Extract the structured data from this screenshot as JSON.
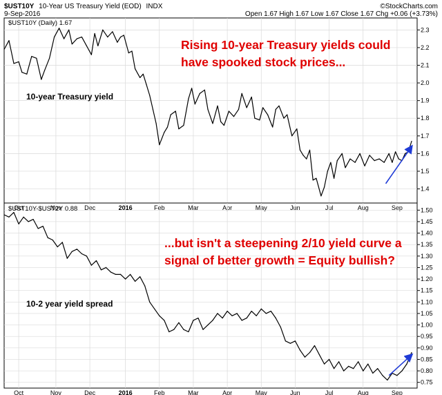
{
  "header": {
    "symbol": "$UST10Y",
    "description": "10-Year US Treasury Yield (EOD)",
    "exchange": "INDX",
    "date": "9-Sep-2016",
    "quote": "Open 1.67  High 1.67  Low 1.67  Close 1.67  Chg +0.06 (+3.73%)",
    "logo": "©StockCharts.com"
  },
  "colors": {
    "line": "#000000",
    "annotation_red": "#e00000",
    "arrow": "#1f3bd6",
    "grid": "#d9d9d9"
  },
  "chart_data": [
    {
      "type": "line",
      "legend": "$UST10Y (Daily) 1.67",
      "annotation_title": [
        "Rising 10-year Treasury yields could",
        "have spooked stock prices..."
      ],
      "label": "10-year Treasury yield",
      "ylim": [
        1.32,
        2.36
      ],
      "y_ticks": [
        "2.3",
        "2.2",
        "2.1",
        "2.0",
        "1.9",
        "1.8",
        "1.7",
        "1.6",
        "1.5",
        "1.4"
      ],
      "x_ticks": [
        "Oct",
        "Nov",
        "Dec",
        "2016",
        "Feb",
        "Mar",
        "Apr",
        "May",
        "Jun",
        "Jul",
        "Aug",
        "Sep"
      ],
      "x_tick_positions": [
        9,
        32,
        53,
        75,
        96,
        117,
        138,
        159,
        180,
        201,
        222,
        243
      ],
      "x_range": [
        0,
        252
      ],
      "x": [
        0,
        3,
        6,
        9,
        11,
        14,
        17,
        20,
        23,
        25,
        28,
        31,
        34,
        37,
        40,
        42,
        45,
        48,
        51,
        54,
        56,
        58,
        61,
        64,
        67,
        70,
        72,
        74,
        77,
        79,
        81,
        84,
        86,
        88,
        90,
        92,
        94,
        96,
        99,
        101,
        103,
        106,
        108,
        111,
        114,
        116,
        118,
        121,
        124,
        126,
        129,
        132,
        134,
        136,
        139,
        142,
        145,
        147,
        150,
        153,
        155,
        158,
        160,
        163,
        166,
        168,
        170,
        173,
        175,
        178,
        181,
        183,
        185,
        187,
        189,
        191,
        193,
        196,
        198,
        200,
        202,
        204,
        206,
        209,
        211,
        214,
        217,
        220,
        223,
        226,
        229,
        232,
        235,
        238,
        240,
        242,
        244,
        246,
        248,
        250,
        252
      ],
      "values": [
        2.19,
        2.24,
        2.11,
        2.12,
        2.06,
        2.05,
        2.15,
        2.14,
        2.02,
        2.07,
        2.14,
        2.26,
        2.31,
        2.25,
        2.3,
        2.22,
        2.25,
        2.26,
        2.21,
        2.16,
        2.28,
        2.21,
        2.3,
        2.26,
        2.29,
        2.23,
        2.26,
        2.27,
        2.17,
        2.18,
        2.08,
        2.03,
        2.05,
        1.99,
        1.93,
        1.85,
        1.77,
        1.65,
        1.72,
        1.75,
        1.82,
        1.84,
        1.74,
        1.76,
        1.91,
        1.97,
        1.88,
        1.94,
        1.96,
        1.85,
        1.77,
        1.87,
        1.78,
        1.76,
        1.84,
        1.81,
        1.85,
        1.94,
        1.86,
        1.92,
        1.8,
        1.79,
        1.86,
        1.82,
        1.75,
        1.85,
        1.87,
        1.8,
        1.82,
        1.7,
        1.74,
        1.62,
        1.59,
        1.57,
        1.62,
        1.45,
        1.46,
        1.36,
        1.41,
        1.5,
        1.55,
        1.46,
        1.56,
        1.6,
        1.52,
        1.57,
        1.55,
        1.6,
        1.53,
        1.59,
        1.56,
        1.57,
        1.55,
        1.6,
        1.55,
        1.61,
        1.57,
        1.56,
        1.6,
        1.61,
        1.67
      ],
      "arrow": [
        [
          236,
          1.43
        ],
        [
          252,
          1.64
        ]
      ]
    },
    {
      "type": "line",
      "legend": "$UST10Y-$UST2Y 0.88",
      "annotation_title": [
        "...but isn't a steepening 2/10 yield curve a",
        "signal of better growth = Equity bullish?"
      ],
      "label": "10-2 year yield spread",
      "ylim": [
        0.725,
        1.525
      ],
      "y_ticks": [
        "1.50",
        "1.45",
        "1.40",
        "1.35",
        "1.30",
        "1.25",
        "1.20",
        "1.15",
        "1.10",
        "1.05",
        "1.00",
        "0.95",
        "0.90",
        "0.85",
        "0.80",
        "0.75"
      ],
      "x_ticks": [
        "Oct",
        "Nov",
        "Dec",
        "2016",
        "Feb",
        "Mar",
        "Apr",
        "May",
        "Jun",
        "Jul",
        "Aug",
        "Sep"
      ],
      "x_tick_positions": [
        9,
        32,
        53,
        75,
        96,
        117,
        138,
        159,
        180,
        201,
        222,
        243
      ],
      "x_range": [
        0,
        252
      ],
      "x": [
        0,
        3,
        6,
        9,
        12,
        15,
        18,
        21,
        24,
        27,
        30,
        33,
        36,
        39,
        42,
        45,
        48,
        51,
        54,
        57,
        60,
        63,
        66,
        69,
        72,
        75,
        78,
        81,
        84,
        87,
        90,
        93,
        96,
        99,
        102,
        105,
        108,
        111,
        114,
        117,
        120,
        123,
        126,
        129,
        132,
        135,
        138,
        141,
        144,
        147,
        150,
        153,
        156,
        159,
        162,
        165,
        168,
        171,
        174,
        177,
        180,
        183,
        186,
        189,
        192,
        195,
        198,
        201,
        204,
        207,
        210,
        213,
        216,
        219,
        222,
        225,
        228,
        231,
        234,
        237,
        240,
        243,
        246,
        249,
        252
      ],
      "values": [
        1.48,
        1.47,
        1.49,
        1.44,
        1.47,
        1.45,
        1.46,
        1.42,
        1.43,
        1.38,
        1.37,
        1.34,
        1.36,
        1.29,
        1.32,
        1.33,
        1.31,
        1.3,
        1.26,
        1.28,
        1.24,
        1.25,
        1.23,
        1.22,
        1.22,
        1.2,
        1.22,
        1.19,
        1.21,
        1.17,
        1.1,
        1.07,
        1.04,
        1.02,
        0.97,
        0.98,
        1.01,
        0.98,
        0.97,
        1.02,
        1.03,
        0.98,
        1.0,
        1.02,
        1.05,
        1.03,
        1.06,
        1.04,
        1.05,
        1.02,
        1.03,
        1.06,
        1.04,
        1.07,
        1.05,
        1.06,
        1.03,
        0.99,
        0.93,
        0.92,
        0.93,
        0.89,
        0.86,
        0.88,
        0.91,
        0.87,
        0.83,
        0.85,
        0.81,
        0.84,
        0.8,
        0.82,
        0.81,
        0.84,
        0.8,
        0.83,
        0.79,
        0.81,
        0.78,
        0.76,
        0.79,
        0.78,
        0.8,
        0.83,
        0.88
      ],
      "arrow": [
        [
          238,
          0.78
        ],
        [
          252,
          0.87
        ]
      ]
    }
  ]
}
